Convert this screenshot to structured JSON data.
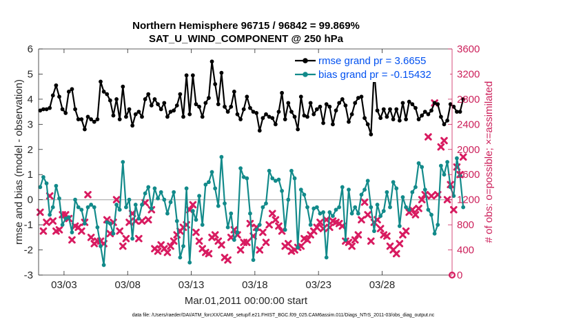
{
  "chart_data": {
    "type": "line",
    "title": "Northern Hemisphere 96715 / 96842 = 99.869%",
    "subtitle": "SAT_U_WIND_COMPONENT @ 250 hPa",
    "xlabel": "Mar.01,2011 00:00:00 start",
    "ylabel": "rmse and bias (model - observation)",
    "ylabel_right": "# of obs: o=possible; ×=assimilated",
    "xlim": [
      1,
      33.5
    ],
    "ylim": [
      -3,
      6
    ],
    "ylim_right": [
      0,
      3600
    ],
    "x_ticks": [
      {
        "x": 3,
        "label": "03/03"
      },
      {
        "x": 8,
        "label": "03/08"
      },
      {
        "x": 13,
        "label": "03/13"
      },
      {
        "x": 18,
        "label": "03/18"
      },
      {
        "x": 23,
        "label": "03/23"
      },
      {
        "x": 28,
        "label": "03/28"
      }
    ],
    "y_ticks": [
      "-3",
      "-2",
      "-1",
      "0",
      "1",
      "2",
      "3",
      "4",
      "5",
      "6"
    ],
    "y_ticks_right": [
      "0",
      "400",
      "800",
      "1200",
      "1600",
      "2000",
      "2400",
      "2800",
      "3200",
      "3600"
    ],
    "zero_line": 0,
    "legend": [
      {
        "label": "rmse grand pr = 3.6655",
        "color": "#000000"
      },
      {
        "label": "bias grand pr = -0.15432",
        "color": "#128a8a"
      }
    ],
    "x_start": 1.125,
    "x_step": 0.25,
    "series": [
      {
        "name": "rmse",
        "axis": "left",
        "color": "#000000",
        "values": [
          3.55,
          3.6,
          3.6,
          3.65,
          4.15,
          4.55,
          4.1,
          3.6,
          3.45,
          4.3,
          4.4,
          3.6,
          3.2,
          3.2,
          2.8,
          3.3,
          3.2,
          3.1,
          3.2,
          4.7,
          4.3,
          4.2,
          3.95,
          3.35,
          4.0,
          3.2,
          4.5,
          3.3,
          3.6,
          2.95,
          3.4,
          3.5,
          3.3,
          4.0,
          4.2,
          3.75,
          4.0,
          3.8,
          3.6,
          3.85,
          3.3,
          3.5,
          3.55,
          3.75,
          4.2,
          3.3,
          4.95,
          3.4,
          4.95,
          3.8,
          3.7,
          3.3,
          3.85,
          4.05,
          5.5,
          4.6,
          3.8,
          5.05,
          3.7,
          3.5,
          3.7,
          4.3,
          3.4,
          3.2,
          3.6,
          4.1,
          3.65,
          3.5,
          3.45,
          2.75,
          3.25,
          3.4,
          3.3,
          3.25,
          3.0,
          3.5,
          4.25,
          3.2,
          3.85,
          3.5,
          3.3,
          2.8,
          4.1,
          3.35,
          3.3,
          3.85,
          3.4,
          3.6,
          3.7,
          3.05,
          3.8,
          3.7,
          3.0,
          3.55,
          3.85,
          4.0,
          3.75,
          3.1,
          3.4,
          3.85,
          4.05,
          4.1,
          3.25,
          3.0,
          2.6,
          5.15,
          3.55,
          3.25,
          3.6,
          3.3,
          3.6,
          3.2,
          3.6,
          3.15,
          3.85,
          3.2,
          3.9,
          3.8,
          3.65,
          3.2,
          3.35,
          3.5,
          3.4,
          3.55,
          3.85,
          3.8,
          3.3,
          3.0,
          3.15,
          3.8,
          3.7,
          3.5,
          3.5,
          4.0
        ]
      },
      {
        "name": "bias",
        "axis": "left",
        "color": "#128a8a",
        "values": [
          0.5,
          0.9,
          0.65,
          -0.6,
          -0.3,
          0.55,
          0.05,
          -1.0,
          -0.75,
          -0.7,
          -1.3,
          0.0,
          -0.3,
          -0.4,
          -0.95,
          -0.3,
          -0.2,
          -0.3,
          -1.1,
          -1.85,
          -2.6,
          -0.9,
          -0.95,
          -1.35,
          -0.2,
          -0.4,
          1.5,
          -0.3,
          0.0,
          -1.55,
          -0.2,
          -0.75,
          -0.2,
          0.25,
          0.5,
          -0.35,
          0.45,
          0.05,
          0.3,
          0.0,
          -0.55,
          -0.1,
          0.3,
          -0.85,
          -2.3,
          -1.85,
          0.45,
          -2.5,
          -0.45,
          -0.8,
          0.15,
          -1.0,
          0.6,
          0.7,
          1.1,
          0.45,
          -0.25,
          1.7,
          -0.15,
          -1.1,
          -0.55,
          -1.6,
          -1.3,
          1.25,
          0.9,
          0.85,
          -0.55,
          -2.4,
          -1.2,
          -1.0,
          -0.3,
          -0.15,
          1.15,
          0.85,
          0.75,
          0.8,
          0.35,
          -1.2,
          0.0,
          1.15,
          0.85,
          -1.9,
          0.4,
          0.2,
          -0.3,
          -1.0,
          -0.35,
          -0.3,
          -0.55,
          -0.5,
          -2.3,
          -0.5,
          -0.65,
          -0.4,
          -0.3,
          0.5,
          -1.6,
          0.4,
          -0.55,
          -0.3,
          -0.55,
          0.2,
          0.4,
          0.75,
          -0.3,
          -1.25,
          -0.2,
          -0.65,
          -0.45,
          0.3,
          -0.3,
          0.7,
          0.45,
          -1.05,
          0.1,
          -0.3,
          -0.4,
          0.3,
          0.5,
          1.45,
          1.3,
          0.4,
          -0.4,
          -0.6,
          -1.35,
          -1.0,
          1.35,
          1.0,
          1.5,
          0.5,
          0.15,
          1.65,
          0.95,
          -0.3
        ]
      },
      {
        "name": "obs assimilated",
        "axis": "right",
        "color": "#d81b60",
        "marker": "x",
        "values": [
          1000,
          700,
          840,
          1260,
          860,
          700,
          720,
          960,
          960,
          900,
          560,
          780,
          760,
          700,
          840,
          1280,
          600,
          500,
          540,
          540,
          500,
          880,
          660,
          840,
          1200,
          700,
          460,
          580,
          840,
          980,
          860,
          580,
          860,
          1150,
          880,
          1040,
          420,
          380,
          480,
          420,
          360,
          460,
          540,
          640,
          700,
          760,
          800,
          1040,
          1120,
          680,
          540,
          420,
          360,
          340,
          600,
          640,
          540,
          480,
          280,
          240,
          600,
          720,
          640,
          400,
          520,
          520,
          820,
          620,
          760,
          400,
          680,
          520,
          800,
          980,
          880,
          780,
          700,
          460,
          500,
          380,
          400,
          440,
          460,
          580,
          560,
          640,
          700,
          760,
          840,
          740,
          880,
          760,
          860,
          840,
          820,
          780,
          540,
          520,
          460,
          560,
          640,
          880,
          1160,
          960,
          540,
          840,
          880,
          740,
          640,
          620,
          460,
          400,
          340,
          500,
          640,
          700,
          1000,
          1040,
          960,
          1060,
          1200,
          1280,
          2200,
          1260,
          2740,
          1280,
          2040,
          2140,
          1200,
          1440,
          1040,
          1720,
          1600,
          1880
        ]
      }
    ],
    "extra_points": [
      {
        "name": "obs possible",
        "x": 33.5,
        "value": 0,
        "color": "#d81b60",
        "marker": "o"
      }
    ]
  },
  "footnote": "data file: /Users/raeder/DAI/ATM_forcXX/CAM6_setup/f.e21.FHIST_BGC.f09_025.CAM6assim.011/Diags_NTrS_2011-03/obs_diag_output.nc"
}
